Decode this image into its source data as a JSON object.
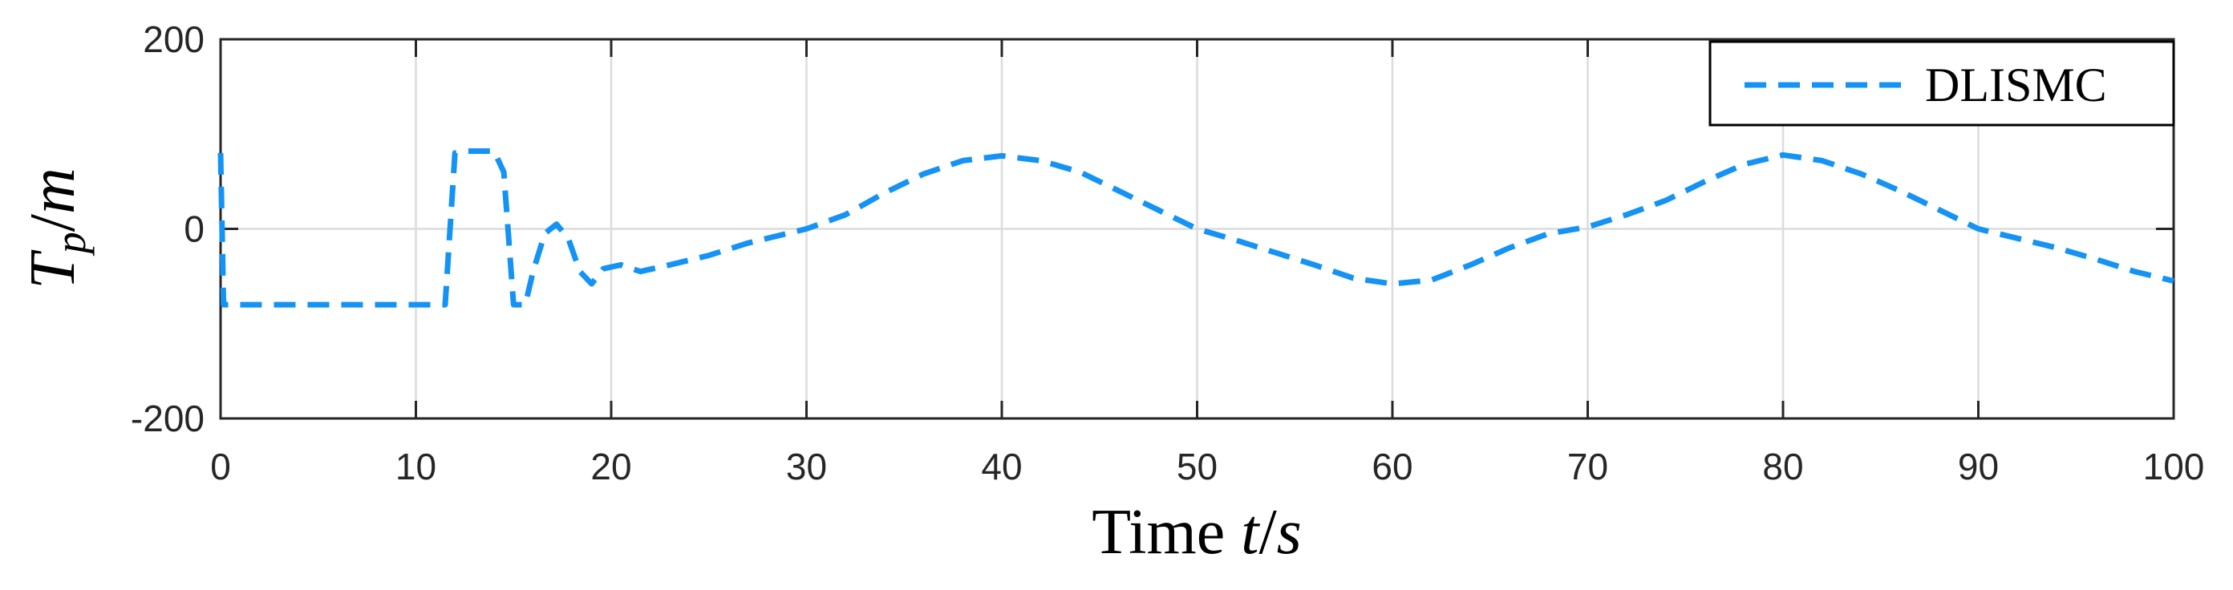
{
  "chart_data": {
    "type": "line",
    "title": "",
    "xlabel": {
      "prefix": "Time ",
      "var": "t",
      "sep": "/",
      "unit": "s"
    },
    "ylabel": {
      "var": "T",
      "sub": "p",
      "sep": "/",
      "unit": "m"
    },
    "xlim": [
      0,
      100
    ],
    "ylim": [
      -200,
      200
    ],
    "xticks": [
      0,
      10,
      20,
      30,
      40,
      50,
      60,
      70,
      80,
      90,
      100
    ],
    "yticks": [
      -200,
      0,
      200
    ],
    "xtick_labels": [
      "0",
      "10",
      "20",
      "30",
      "40",
      "50",
      "60",
      "70",
      "80",
      "90",
      "100"
    ],
    "ytick_labels": [
      "-200",
      "0",
      "200"
    ],
    "grid": true,
    "legend": {
      "position": "top-right"
    },
    "series": [
      {
        "name": "DLISMC",
        "color": "#1593f4",
        "style": "dashed",
        "points": [
          [
            0,
            80
          ],
          [
            0.15,
            -80
          ],
          [
            1,
            -80
          ],
          [
            5,
            -80
          ],
          [
            10,
            -80
          ],
          [
            11.5,
            -80
          ],
          [
            12.0,
            80
          ],
          [
            12.5,
            82
          ],
          [
            14.0,
            82
          ],
          [
            14.5,
            60
          ],
          [
            15.0,
            -80
          ],
          [
            15.6,
            -80
          ],
          [
            16.0,
            -45
          ],
          [
            16.6,
            -5
          ],
          [
            17.2,
            5
          ],
          [
            17.8,
            -10
          ],
          [
            18.4,
            -45
          ],
          [
            19.0,
            -58
          ],
          [
            19.6,
            -42
          ],
          [
            20.5,
            -38
          ],
          [
            21.5,
            -45
          ],
          [
            23,
            -38
          ],
          [
            25,
            -28
          ],
          [
            27,
            -15
          ],
          [
            29,
            -5
          ],
          [
            30,
            0
          ],
          [
            32,
            15
          ],
          [
            34,
            38
          ],
          [
            36,
            58
          ],
          [
            38,
            72
          ],
          [
            40,
            77
          ],
          [
            42,
            72
          ],
          [
            44,
            60
          ],
          [
            46,
            40
          ],
          [
            48,
            20
          ],
          [
            50,
            0
          ],
          [
            52,
            -12
          ],
          [
            54,
            -25
          ],
          [
            56,
            -38
          ],
          [
            58,
            -52
          ],
          [
            60,
            -58
          ],
          [
            62,
            -54
          ],
          [
            64,
            -38
          ],
          [
            66,
            -20
          ],
          [
            68,
            -5
          ],
          [
            70,
            2
          ],
          [
            72,
            15
          ],
          [
            74,
            30
          ],
          [
            76,
            50
          ],
          [
            78,
            68
          ],
          [
            80,
            78
          ],
          [
            82,
            72
          ],
          [
            84,
            58
          ],
          [
            86,
            40
          ],
          [
            88,
            20
          ],
          [
            90,
            0
          ],
          [
            92,
            -10
          ],
          [
            94,
            -20
          ],
          [
            96,
            -32
          ],
          [
            98,
            -45
          ],
          [
            100,
            -55
          ]
        ]
      }
    ]
  }
}
